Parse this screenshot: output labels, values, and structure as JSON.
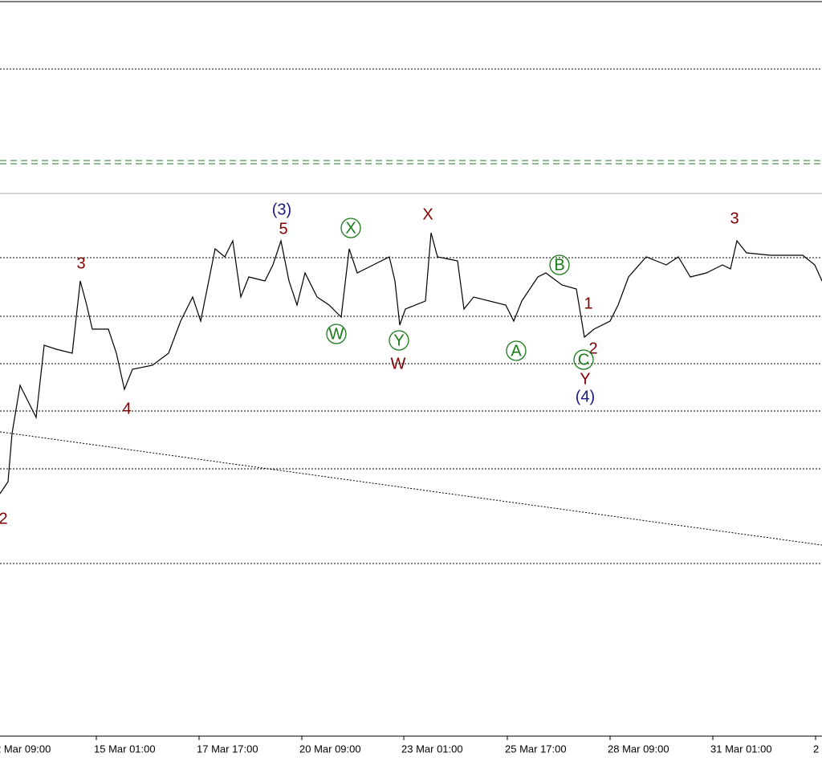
{
  "wave_labels": [
    {
      "text": "2",
      "color": "#800000"
    },
    {
      "text": "3",
      "color": "#800000"
    },
    {
      "text": "4",
      "color": "#800000"
    },
    {
      "text": "(3)",
      "color": "#1a1a80"
    },
    {
      "text": "5",
      "color": "#800000"
    },
    {
      "text": "X",
      "color": "#1a7a1a",
      "circled": true
    },
    {
      "text": "W",
      "color": "#1a7a1a",
      "circled": true
    },
    {
      "text": "Y",
      "color": "#1a7a1a",
      "circled": true
    },
    {
      "text": "W",
      "color": "#800000"
    },
    {
      "text": "X",
      "color": "#800000"
    },
    {
      "text": "A",
      "color": "#1a7a1a",
      "circled": true
    },
    {
      "text": "B",
      "color": "#1a7a1a",
      "circled": true
    },
    {
      "text": "1",
      "color": "#800000"
    },
    {
      "text": "2",
      "color": "#800000"
    },
    {
      "text": "C",
      "color": "#1a7a1a",
      "circled": true
    },
    {
      "text": "Y",
      "color": "#800000"
    },
    {
      "text": "(4)",
      "color": "#1a1a80"
    },
    {
      "text": "3",
      "color": "#800000"
    }
  ],
  "time_axis": [
    "2 Mar 09:00",
    "15 Mar 01:00",
    "17 Mar 17:00",
    "20 Mar 09:00",
    "23 Mar 01:00",
    "25 Mar 17:00",
    "28 Mar 09:00",
    "31 Mar 01:00",
    "2"
  ]
}
